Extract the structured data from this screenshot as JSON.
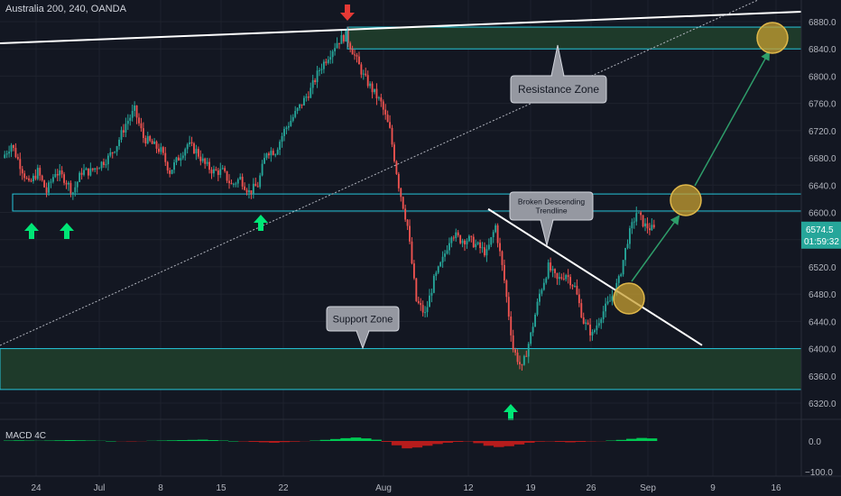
{
  "header": {
    "title": "Australia 200, 240, OANDA"
  },
  "colors": {
    "background": "#131722",
    "up": "#26a69a",
    "down": "#ef5350",
    "zone_fill": "#1e3a2a",
    "zone_line": "#26c6da",
    "trend_line": "#ffffff",
    "arrow_up": "#00e676",
    "arrow_down": "#e53935",
    "circle_fill": "#c8a032",
    "projection": "#2e9d6a",
    "price_badge": "#26a69a"
  },
  "chart_data": {
    "type": "candlestick",
    "symbol": "Australia 200",
    "timeframe": "240",
    "source": "OANDA",
    "y_axis": {
      "range": [
        6300,
        6900
      ],
      "ticks": [
        6880,
        6840,
        6800,
        6760,
        6720,
        6680,
        6640,
        6600,
        6560,
        6520,
        6480,
        6440,
        6400,
        6360,
        6320
      ],
      "tick_labels": [
        "6880.0",
        "6840.0",
        "6800.0",
        "6760.0",
        "6720.0",
        "6680.0",
        "6640.0",
        "6600.0",
        "6560.0",
        "6520.0",
        "6480.0",
        "6440.0",
        "6400.0",
        "6360.0",
        "6320.0"
      ]
    },
    "x_axis": {
      "tick_labels": [
        "24",
        "Jul",
        "8",
        "15",
        "22",
        "Aug",
        "12",
        "19",
        "26",
        "Sep",
        "9",
        "16"
      ]
    },
    "last_price": {
      "label": "6574.5",
      "countdown": "01:59:32"
    },
    "price_path": [
      {
        "x": "Jun 20",
        "v": 6680
      },
      {
        "x": "Jun 21",
        "v": 6700
      },
      {
        "x": "Jun 22",
        "v": 6670
      },
      {
        "x": "Jun 23",
        "v": 6640
      },
      {
        "x": "Jun 24",
        "v": 6660
      },
      {
        "x": "Jun 25",
        "v": 6630
      },
      {
        "x": "Jun 26",
        "v": 6660
      },
      {
        "x": "Jun 27",
        "v": 6650
      },
      {
        "x": "Jun 28",
        "v": 6630
      },
      {
        "x": "Jun 29",
        "v": 6660
      },
      {
        "x": "Jun 30",
        "v": 6660
      },
      {
        "x": "Jul 1",
        "v": 6670
      },
      {
        "x": "Jul 2",
        "v": 6680
      },
      {
        "x": "Jul 3",
        "v": 6700
      },
      {
        "x": "Jul 4",
        "v": 6730
      },
      {
        "x": "Jul 5",
        "v": 6750
      },
      {
        "x": "Jul 6",
        "v": 6710
      },
      {
        "x": "Jul 7",
        "v": 6700
      },
      {
        "x": "Jul 8",
        "v": 6690
      },
      {
        "x": "Jul 9",
        "v": 6660
      },
      {
        "x": "Jul 10",
        "v": 6680
      },
      {
        "x": "Jul 11",
        "v": 6700
      },
      {
        "x": "Jul 12",
        "v": 6690
      },
      {
        "x": "Jul 13",
        "v": 6670
      },
      {
        "x": "Jul 14",
        "v": 6660
      },
      {
        "x": "Jul 15",
        "v": 6660
      },
      {
        "x": "Jul 16",
        "v": 6640
      },
      {
        "x": "Jul 17",
        "v": 6650
      },
      {
        "x": "Jul 18",
        "v": 6630
      },
      {
        "x": "Jul 19",
        "v": 6640
      },
      {
        "x": "Jul 20",
        "v": 6690
      },
      {
        "x": "Jul 21",
        "v": 6690
      },
      {
        "x": "Jul 22",
        "v": 6720
      },
      {
        "x": "Jul 23",
        "v": 6740
      },
      {
        "x": "Jul 24",
        "v": 6760
      },
      {
        "x": "Jul 25",
        "v": 6780
      },
      {
        "x": "Jul 26",
        "v": 6810
      },
      {
        "x": "Jul 27",
        "v": 6830
      },
      {
        "x": "Jul 28",
        "v": 6850
      },
      {
        "x": "Jul 29",
        "v": 6860
      },
      {
        "x": "Jul 30",
        "v": 6830
      },
      {
        "x": "Jul 31",
        "v": 6800
      },
      {
        "x": "Aug 1",
        "v": 6780
      },
      {
        "x": "Aug 2",
        "v": 6760
      },
      {
        "x": "Aug 3",
        "v": 6720
      },
      {
        "x": "Aug 4",
        "v": 6640
      },
      {
        "x": "Aug 5",
        "v": 6580
      },
      {
        "x": "Aug 6",
        "v": 6470
      },
      {
        "x": "Aug 7",
        "v": 6450
      },
      {
        "x": "Aug 8",
        "v": 6500
      },
      {
        "x": "Aug 9",
        "v": 6530
      },
      {
        "x": "Aug 10",
        "v": 6570
      },
      {
        "x": "Aug 11",
        "v": 6560
      },
      {
        "x": "Aug 12",
        "v": 6560
      },
      {
        "x": "Aug 13",
        "v": 6550
      },
      {
        "x": "Aug 14",
        "v": 6540
      },
      {
        "x": "Aug 15",
        "v": 6580
      },
      {
        "x": "Aug 16",
        "v": 6500
      },
      {
        "x": "Aug 17",
        "v": 6400
      },
      {
        "x": "Aug 18",
        "v": 6370
      },
      {
        "x": "Aug 19",
        "v": 6420
      },
      {
        "x": "Aug 20",
        "v": 6480
      },
      {
        "x": "Aug 21",
        "v": 6520
      },
      {
        "x": "Aug 22",
        "v": 6500
      },
      {
        "x": "Aug 23",
        "v": 6510
      },
      {
        "x": "Aug 24",
        "v": 6490
      },
      {
        "x": "Aug 25",
        "v": 6440
      },
      {
        "x": "Aug 26",
        "v": 6420
      },
      {
        "x": "Aug 27",
        "v": 6450
      },
      {
        "x": "Aug 28",
        "v": 6470
      },
      {
        "x": "Aug 29",
        "v": 6500
      },
      {
        "x": "Aug 30",
        "v": 6560
      },
      {
        "x": "Aug 31",
        "v": 6600
      },
      {
        "x": "Sep 1",
        "v": 6580
      },
      {
        "x": "Sep 2",
        "v": 6574.5
      }
    ],
    "resistance_zone": {
      "low": 6840,
      "high": 6872,
      "label": "Resistance Zone"
    },
    "mid_zone": {
      "low": 6602,
      "high": 6627
    },
    "support_zone": {
      "low": 6340,
      "high": 6400,
      "label": "Support Zone"
    },
    "descending_trendline_label": "Broken Descending Trendline",
    "indicator": {
      "name": "MACD 4C",
      "y_axis": {
        "ticks": [
          0,
          -100
        ],
        "tick_labels": [
          "0.0",
          "−100.0"
        ]
      },
      "histogram": [
        2,
        3,
        2,
        1,
        2,
        3,
        4,
        3,
        2,
        1,
        0,
        -1,
        -2,
        -1,
        1,
        2,
        3,
        4,
        5,
        6,
        4,
        2,
        0,
        -2,
        -4,
        -6,
        -8,
        -5,
        -3,
        -1,
        2,
        5,
        9,
        13,
        16,
        12,
        6,
        -4,
        -20,
        -34,
        -30,
        -22,
        -14,
        -8,
        -4,
        -2,
        -10,
        -22,
        -28,
        -24,
        -16,
        -8,
        -3,
        -2,
        -4,
        -6,
        -4,
        -2,
        -1,
        2,
        5,
        10,
        14,
        12
      ]
    }
  }
}
